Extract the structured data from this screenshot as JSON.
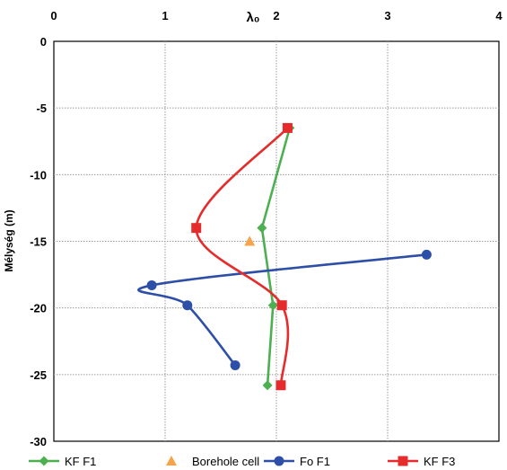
{
  "chart_data": {
    "type": "line",
    "title": "",
    "xlabel": "λ₀",
    "ylabel": "Mélység (m)",
    "xlim": [
      0,
      4
    ],
    "ylim": [
      -30,
      0
    ],
    "x_ticks": [
      "0",
      "1",
      "2",
      "3",
      "4"
    ],
    "y_ticks": [
      "0",
      "-5",
      "-10",
      "-15",
      "-20",
      "-25",
      "-30"
    ],
    "x_axis_position": "top",
    "grid": true,
    "legend_position": "bottom",
    "series": [
      {
        "name": "KF F1",
        "color": "#4caf50",
        "marker": "diamond",
        "smooth": false,
        "points": [
          [
            2.12,
            -6.5
          ],
          [
            1.87,
            -14
          ],
          [
            1.97,
            -19.8
          ],
          [
            1.92,
            -25.8
          ]
        ]
      },
      {
        "name": "Borehole cell",
        "color": "#f5a44a",
        "marker": "triangle",
        "smooth": false,
        "markers_only": true,
        "points": [
          [
            1.76,
            -15
          ]
        ]
      },
      {
        "name": "Fo F1",
        "color": "#2e4fa8",
        "marker": "circle",
        "smooth": true,
        "points": [
          [
            3.35,
            -16
          ],
          [
            0.88,
            -18.3
          ],
          [
            1.2,
            -19.8
          ],
          [
            1.63,
            -24.3
          ]
        ]
      },
      {
        "name": "KF F3",
        "color": "#e52b2b",
        "marker": "square",
        "smooth": true,
        "points": [
          [
            2.1,
            -6.5
          ],
          [
            1.28,
            -14
          ],
          [
            2.05,
            -19.8
          ],
          [
            2.04,
            -25.8
          ]
        ]
      }
    ]
  }
}
